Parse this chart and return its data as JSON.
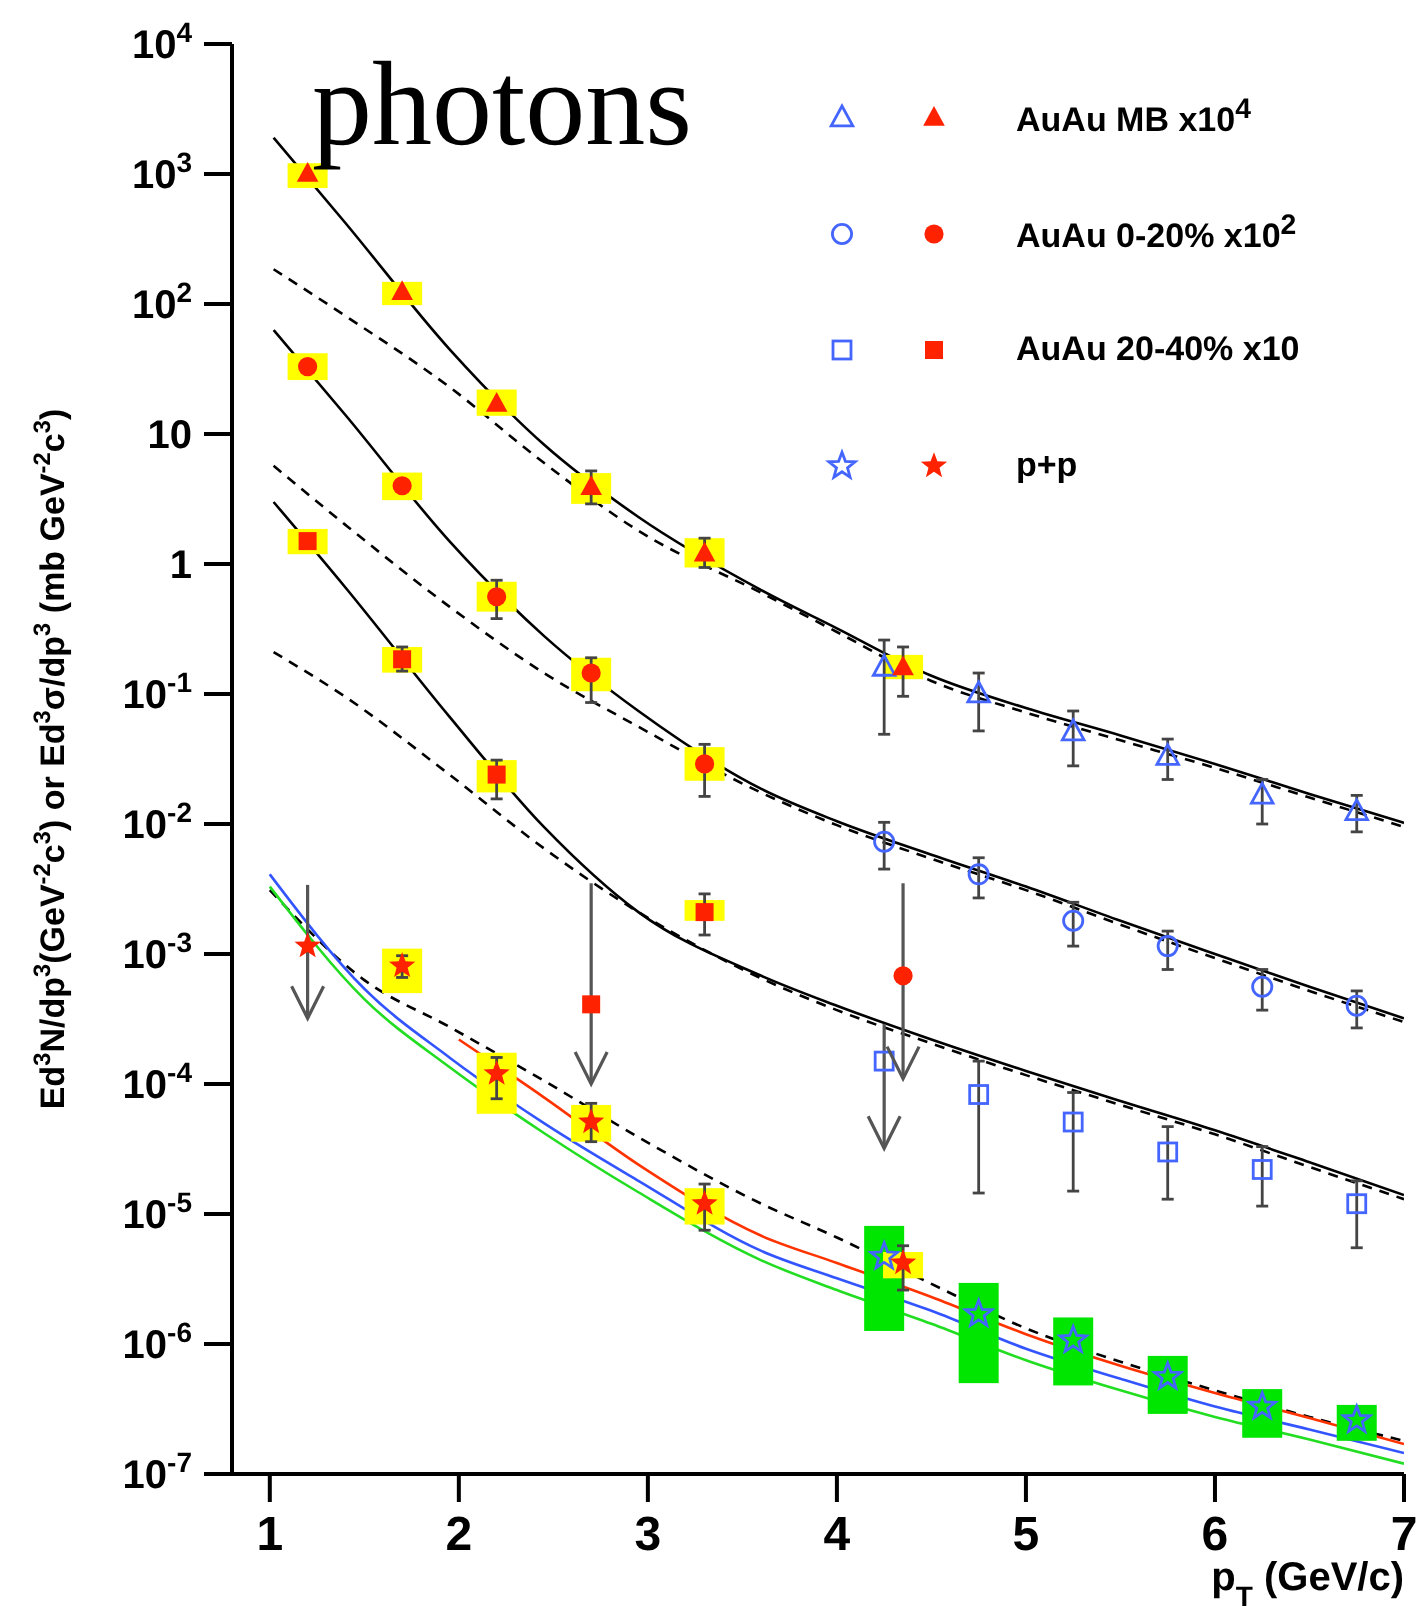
{
  "chart_data": {
    "type": "scatter",
    "xlabel": "p$_{T}$ (GeV/c)",
    "ylabel": "Ed$^{3}$N/dp$^{3}$(GeV$^{-2}$c$^{3}$) or Ed$^{3}$σ/dp$^{3}$ (mb GeV$^{-2}$c$^{3}$)",
    "annotations": [
      "photons"
    ],
    "log": "y",
    "legend": "top right",
    "xlim": [
      0.8,
      7
    ],
    "xticks": [
      1,
      2,
      3,
      4,
      5,
      6,
      7
    ],
    "ylim": [
      1e-07,
      10000
    ],
    "yticks": [
      {
        "value": 1e-07,
        "label": "10$^{-7}$"
      },
      {
        "value": 1e-06,
        "label": "10$^{-6}$"
      },
      {
        "value": 1e-05,
        "label": "10$^{-5}$"
      },
      {
        "value": 0.0001,
        "label": "10$^{-4}$"
      },
      {
        "value": 0.001,
        "label": "10$^{-3}$"
      },
      {
        "value": 0.01,
        "label": "10$^{-2}$"
      },
      {
        "value": 0.1,
        "label": "10$^{-1}$"
      },
      1,
      10,
      {
        "value": 100,
        "label": "10$^{2}$"
      },
      {
        "value": 1000,
        "label": "10$^{3}$"
      },
      {
        "value": 10000,
        "label": "10$^{4}$"
      }
    ],
    "series": [
      {
        "type": "bar",
        "color": "#00e600",
        "x": [
          4.25,
          4.75,
          5.25,
          5.75,
          6.25,
          6.75
        ],
        "base": [
          1.26e-06,
          5e-07,
          4.8e-07,
          2.9e-07,
          1.9e-07,
          1.8e-07
        ],
        "values": [
          6.84e-06,
          2.45e-06,
          1.12e-06,
          5.2e-07,
          2.6e-07,
          1.6e-07
        ]
      },
      {
        "type": "bar",
        "color": "#ffff00",
        "x": [
          1.2,
          1.7,
          2.2,
          2.7,
          3.3,
          4.35
        ],
        "base": [
          780,
          98,
          13.8,
          2.9,
          0.94,
          0.13
        ],
        "values": [
          430,
          50,
          8.2,
          2.1,
          0.64,
          0.07
        ]
      },
      {
        "type": "bar",
        "color": "#ffff00",
        "x": [
          1.2,
          1.7,
          2.2,
          2.7,
          3.3
        ],
        "base": [
          26,
          3.1,
          0.43,
          0.105,
          0.0215
        ],
        "values": [
          15.8,
          1.95,
          0.3,
          0.085,
          0.0175
        ]
      },
      {
        "type": "bar",
        "color": "#ffff00",
        "x": [
          1.2,
          1.7,
          2.2,
          3.3
        ],
        "base": [
          1.19,
          0.146,
          0.0175,
          0.0018
        ],
        "values": [
          0.67,
          0.084,
          0.0135,
          0.0008
        ]
      },
      {
        "type": "bar",
        "color": "#ffff00",
        "x": [
          1.7,
          2.2,
          2.7,
          3.3,
          4.35
        ],
        "base": [
          0.0005,
          5.9e-05,
          3.6e-05,
          8.3e-06,
          3.2e-06
        ],
        "values": [
          0.0006,
          0.000115,
          3.3e-05,
          7.5e-06,
          1.9e-06
        ]
      },
      {
        "type": "line",
        "color": "#000000",
        "line_style": "dashed",
        "x": [
          1.02,
          1.4,
          1.95,
          2.45,
          2.95,
          3.6,
          4.0,
          4.5,
          5.0,
          5.5,
          6.0,
          6.5,
          7.0
        ],
        "values": [
          185,
          81,
          23,
          6.0,
          1.8,
          0.6,
          0.3,
          0.126,
          0.072,
          0.044,
          0.027,
          0.016,
          0.0095
        ]
      },
      {
        "type": "line",
        "color": "#000000",
        "line_style": "dashed",
        "x": [
          1.02,
          1.4,
          1.95,
          2.45,
          2.95,
          3.6,
          4.0,
          4.5,
          5.0,
          5.5,
          6.0,
          6.5,
          7.0
        ],
        "values": [
          5.7,
          2.0,
          0.47,
          0.145,
          0.056,
          0.0174,
          0.0098,
          0.0054,
          0.0031,
          0.00168,
          0.00093,
          0.00052,
          0.0003
        ]
      },
      {
        "type": "line",
        "color": "#000000",
        "line_style": "dashed",
        "x": [
          1.02,
          1.4,
          1.95,
          2.45,
          2.95,
          3.6,
          4.0,
          4.5,
          5.0,
          5.5,
          6.0,
          6.5,
          7.0
        ],
        "values": [
          0.21,
          0.095,
          0.024,
          0.0065,
          0.0021,
          0.00065,
          0.00037,
          0.000205,
          0.000117,
          6.9e-05,
          4.1e-05,
          2.3e-05,
          1.3e-05
        ]
      },
      {
        "type": "line",
        "color": "#000000",
        "line_style": "dashed",
        "x": [
          1.0,
          1.5,
          1.95,
          2.45,
          2.95,
          3.6,
          4.0,
          4.5,
          5.0,
          5.5,
          6.0,
          6.5,
          7.0
        ],
        "values": [
          0.0031,
          0.00063,
          0.000275,
          0.000106,
          3.9e-05,
          1.2e-05,
          6.6e-06,
          2.9e-06,
          1.32e-06,
          7.3e-07,
          4.4e-07,
          2.75e-07,
          1.8e-07
        ]
      },
      {
        "type": "line",
        "color": "#000000",
        "line_style": "solid",
        "x": [
          1.02,
          1.4,
          1.95,
          2.45,
          2.95,
          3.6,
          4.0,
          4.5,
          5.0,
          5.5,
          6.0,
          6.5,
          7.0
        ],
        "values": [
          1900,
          420,
          45,
          8.3,
          2.3,
          0.63,
          0.32,
          0.138,
          0.078,
          0.048,
          0.029,
          0.017,
          0.0102
        ]
      },
      {
        "type": "line",
        "color": "#000000",
        "line_style": "solid",
        "x": [
          1.02,
          1.4,
          1.95,
          2.45,
          2.95,
          3.6,
          4.0,
          4.5,
          5.0,
          5.5,
          6.0,
          6.5,
          7.0
        ],
        "values": [
          63,
          14,
          1.5,
          0.28,
          0.074,
          0.0186,
          0.0105,
          0.0058,
          0.0033,
          0.0018,
          0.001,
          0.00056,
          0.00032
        ]
      },
      {
        "type": "line",
        "color": "#000000",
        "line_style": "solid",
        "x": [
          1.02,
          1.4,
          1.95,
          2.45,
          2.95,
          3.6,
          4.0,
          4.5,
          5.0,
          5.5,
          6.0,
          6.5,
          7.0
        ],
        "values": [
          3.0,
          0.66,
          0.067,
          0.0095,
          0.0021,
          0.00068,
          0.0004,
          0.00022,
          0.000126,
          7.4e-05,
          4.4e-05,
          2.5e-05,
          1.4e-05
        ]
      },
      {
        "type": "line",
        "color": "#ff3300",
        "line_style": "solid",
        "x": [
          2.0,
          2.45,
          2.95,
          3.6,
          4.0,
          4.5,
          5.0,
          5.5,
          6.0,
          6.5,
          7.0
        ],
        "values": [
          0.00022,
          7.9e-05,
          2.4e-05,
          6.8e-06,
          4.2e-06,
          2.3e-06,
          1.19e-06,
          6.8e-07,
          4.2e-07,
          2.7e-07,
          1.7e-07
        ]
      },
      {
        "type": "line",
        "color": "#3355ff",
        "line_style": "solid",
        "x": [
          1.0,
          1.5,
          1.95,
          2.45,
          2.95,
          3.6,
          4.0,
          4.5,
          5.0,
          5.5,
          6.0,
          6.5,
          7.0
        ],
        "values": [
          0.0041,
          0.00054,
          0.00016,
          5e-05,
          1.8e-05,
          5.2e-06,
          3.2e-06,
          1.8e-06,
          9.2e-07,
          5.4e-07,
          3.3e-07,
          2.2e-07,
          1.45e-07
        ]
      },
      {
        "type": "line",
        "color": "#22dd22",
        "line_style": "solid",
        "x": [
          1.0,
          1.5,
          1.95,
          2.45,
          2.95,
          3.6,
          4.0,
          4.5,
          5.0,
          5.5,
          6.0,
          6.5,
          7.0
        ],
        "values": [
          0.0033,
          0.00045,
          0.000135,
          4.2e-05,
          1.47e-05,
          4.4e-06,
          2.6e-06,
          1.43e-06,
          7.5e-07,
          4.4e-07,
          2.75e-07,
          1.84e-07,
          1.2e-07
        ]
      },
      {
        "name": "AuAu MB x10$^{4}$",
        "color": "#ff2200",
        "marker": "triangle",
        "x": [
          1.2,
          1.7,
          2.2,
          2.7,
          3.3,
          4.25,
          4.35,
          4.75,
          5.25,
          5.75,
          6.25,
          6.75
        ],
        "values": [
          1000,
          123,
          17,
          3.9,
          1.2,
          0.16,
          0.16,
          0.1,
          0.051,
          0.033,
          0.0166,
          0.0124
        ],
        "colors": [
          "#ff2200",
          "#ff2200",
          "#ff2200",
          "#ff2200",
          "#ff2200",
          "#4466ff",
          "#ff2200",
          "#4466ff",
          "#4466ff",
          "#4466ff",
          "#4466ff",
          "#4466ff"
        ],
        "errors": [
          null,
          null,
          null,
          [
            2.9,
            5.2
          ],
          [
            0.94,
            1.58
          ],
          [
            0.049,
            0.26
          ],
          [
            0.096,
            0.23
          ],
          [
            0.052,
            0.145
          ],
          [
            0.028,
            0.074
          ],
          [
            0.022,
            0.045
          ],
          [
            0.01,
            0.022
          ],
          [
            0.0087,
            0.0166
          ]
        ]
      },
      {
        "name": "AuAu 0-20% x10$^{2}$",
        "color": "#ff2200",
        "marker": "circle",
        "x": [
          1.2,
          1.7,
          2.2,
          2.7,
          3.3,
          4.25,
          4.75,
          5.25,
          5.75,
          6.25,
          6.75
        ],
        "values": [
          33,
          4.0,
          0.56,
          0.145,
          0.029,
          0.0073,
          0.0041,
          0.0018,
          0.00115,
          0.00056,
          0.0004
        ],
        "colors": [
          "#ff2200",
          "#ff2200",
          "#ff2200",
          "#ff2200",
          "#ff2200",
          "#4466ff",
          "#4466ff",
          "#4466ff",
          "#4466ff",
          "#4466ff",
          "#4466ff"
        ],
        "errors": [
          null,
          null,
          [
            0.38,
            0.75
          ],
          [
            0.086,
            0.19
          ],
          [
            0.0163,
            0.041
          ],
          [
            0.0045,
            0.0103
          ],
          [
            0.0027,
            0.0055
          ],
          [
            0.00115,
            0.0025
          ],
          [
            0.00076,
            0.0015
          ],
          [
            0.00037,
            0.00076
          ],
          [
            0.00027,
            0.00052
          ]
        ]
      },
      {
        "name": "AuAu 20-40% x10",
        "color": "#ff2200",
        "marker": "square",
        "x": [
          1.2,
          1.7,
          2.2,
          3.3,
          4.75,
          5.25,
          5.75,
          6.25,
          6.75
        ],
        "values": [
          1.5,
          0.185,
          0.024,
          0.0021,
          8.3e-05,
          5.1e-05,
          3e-05,
          2.2e-05,
          1.2e-05
        ],
        "colors": [
          "#ff2200",
          "#ff2200",
          "#ff2200",
          "#ff2200",
          "#4466ff",
          "#4466ff",
          "#4466ff",
          "#4466ff",
          "#4466ff"
        ],
        "errors": [
          null,
          [
            0.15,
            0.23
          ],
          [
            0.0156,
            0.031
          ],
          [
            0.0014,
            0.0029
          ],
          [
            1.45e-05,
            0.00015
          ],
          [
            1.5e-05,
            8.6e-05
          ],
          [
            1.3e-05,
            4.7e-05
          ],
          [
            1.15e-05,
            3.3e-05
          ],
          [
            5.5e-06,
            1.8e-05
          ]
        ]
      },
      {
        "name": "p+p",
        "color": "#ff2200",
        "marker": "star",
        "x": [
          1.7,
          2.2,
          2.7,
          3.3,
          4.25,
          4.35,
          4.75,
          5.25,
          5.75,
          6.25,
          6.75
        ],
        "values": [
          0.00081,
          0.00012,
          5.1e-05,
          1.2e-05,
          4.7e-06,
          4.2e-06,
          1.7e-06,
          1.07e-06,
          5.6e-07,
          3.3e-07,
          2.6e-07
        ],
        "colors": [
          "#ff2200",
          "#ff2200",
          "#ff2200",
          "#ff2200",
          "#4466ff",
          "#ff2200",
          "#4466ff",
          "#4466ff",
          "#4466ff",
          "#4466ff",
          "#4466ff"
        ],
        "errors": [
          [
            0.00066,
            0.00097
          ],
          [
            7.7e-05,
            0.00016
          ],
          [
            3.6e-05,
            7.1e-05
          ],
          [
            7.5e-06,
            1.7e-05
          ],
          null,
          [
            2.6e-06,
            5.7e-06
          ],
          null,
          null,
          null,
          null,
          null
        ]
      },
      {
        "color": "#ff2200",
        "marker": "star",
        "x": [
          1.2
        ],
        "values": [
          0.00115
        ],
        "errors": [
          [
            0.00032,
            0.0034
          ]
        ]
      },
      {
        "color": "#ff2200",
        "marker": "square",
        "x": [
          2.7,
          4.25
        ],
        "values": [
          0.00041,
          0.00015
        ],
        "colors": [
          "#ff2200",
          "#4466ff"
        ],
        "errors": [
          [
            0.0001,
            0.0035
          ],
          [
            3.2e-05,
            0.00029
          ]
        ]
      },
      {
        "color": "#ff2200",
        "marker": "circle",
        "x": [
          4.35
        ],
        "values": [
          0.00068
        ],
        "errors": [
          [
            0.00011,
            0.0035
          ]
        ]
      }
    ]
  }
}
